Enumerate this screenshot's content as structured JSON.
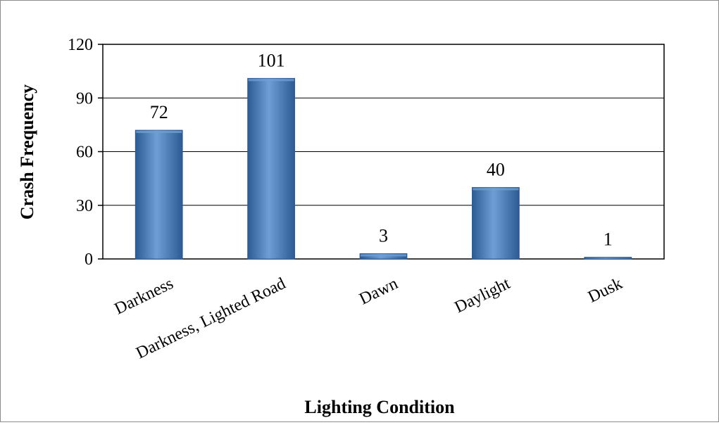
{
  "chart_data": {
    "type": "bar",
    "categories": [
      "Darkness",
      "Darkness, Lighted Road",
      "Dawn",
      "Daylight",
      "Dusk"
    ],
    "values": [
      72,
      101,
      3,
      40,
      1
    ],
    "data_labels": [
      "72",
      "101",
      "3",
      "40",
      "1"
    ],
    "title": "",
    "xlabel": "Lighting Condition",
    "ylabel": "Crash Frequency",
    "ylim": [
      0,
      120
    ],
    "yticks": [
      0,
      30,
      60,
      90,
      120
    ],
    "ytick_labels": [
      "0",
      "30",
      "60",
      "90",
      "120"
    ],
    "grid": true,
    "legend": "none",
    "bar_color": "#4f81bd",
    "bar_color_dark": "#2c5a93",
    "bar_color_light": "#6f9ed6"
  }
}
